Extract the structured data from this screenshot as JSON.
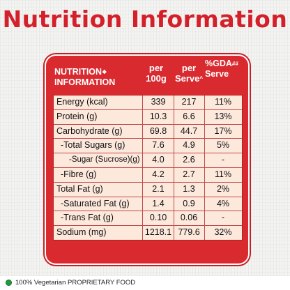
{
  "title": "Nutrition Information",
  "table": {
    "header": {
      "label_line1": "NUTRITION",
      "label_symbol": "❖",
      "label_line2": "INFORMATION",
      "per100_line1": "per",
      "per100_line2": "100g",
      "perserve_line1": "per",
      "perserve_line2": "Serve",
      "perserve_sup": "^",
      "gda_line1": "%GDA",
      "gda_sup": "##",
      "gda_line2": "Serve"
    },
    "rows": [
      {
        "name": "Energy (kcal)",
        "per100": "339",
        "perserve": "217",
        "gda": "11%",
        "level": 0
      },
      {
        "name": "Protein (g)",
        "per100": "10.3",
        "perserve": "6.6",
        "gda": "13%",
        "level": 0
      },
      {
        "name": "Carbohydrate (g)",
        "per100": "69.8",
        "perserve": "44.7",
        "gda": "17%",
        "level": 0
      },
      {
        "name": "-Total Sugars (g)",
        "per100": "7.6",
        "perserve": "4.9",
        "gda": "5%",
        "level": 1
      },
      {
        "name": "-Sugar (Sucrose)(g)",
        "per100": "4.0",
        "perserve": "2.6",
        "gda": "-",
        "level": 2
      },
      {
        "name": "-Fibre (g)",
        "per100": "4.2",
        "perserve": "2.7",
        "gda": "11%",
        "level": 1
      },
      {
        "name": "Total Fat (g)",
        "per100": "2.1",
        "perserve": "1.3",
        "gda": "2%",
        "level": 0
      },
      {
        "name": "-Saturated Fat (g)",
        "per100": "1.4",
        "perserve": "0.9",
        "gda": "4%",
        "level": 1
      },
      {
        "name": "-Trans Fat (g)",
        "per100": "0.10",
        "perserve": "0.06",
        "gda": "-",
        "level": 1
      },
      {
        "name": "Sodium (mg)",
        "per100": "1218.1",
        "perserve": "779.6",
        "gda": "32%",
        "level": 0
      }
    ]
  },
  "footer": {
    "text": "100% Vegetarian PROPRIETARY FOOD",
    "icon": "veg-dot-icon"
  },
  "colors": {
    "accent": "#d4202a",
    "panel": "#d92a2f",
    "table_bg": "#fde8dc",
    "veg_green": "#1f9d3e"
  }
}
